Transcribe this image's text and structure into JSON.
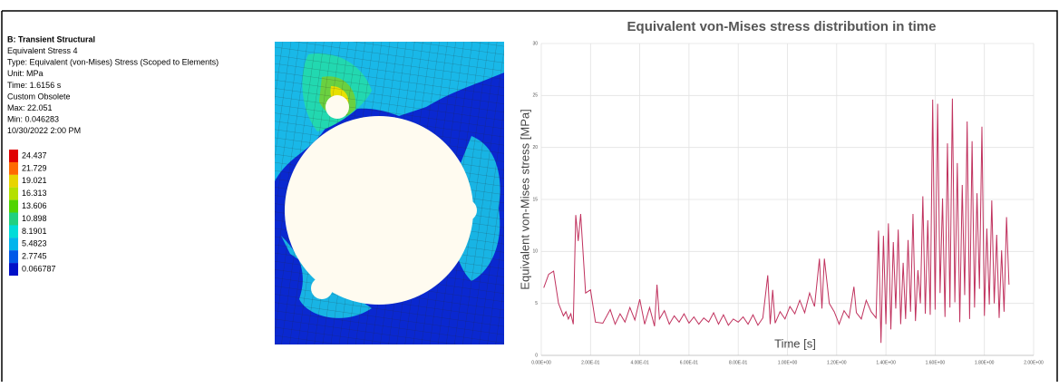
{
  "result_info": {
    "title": "B: Transient Structural",
    "lines": [
      "Equivalent Stress 4",
      "Type: Equivalent (von-Mises) Stress (Scoped to Elements)",
      "Unit: MPa",
      "Time: 1.6156 s",
      "Custom Obsolete",
      "Max: 22.051",
      "Min: 0.046283",
      "10/30/2022 2:00 PM"
    ],
    "legend": [
      {
        "label": "24.437",
        "color": "#e00000"
      },
      {
        "label": "21.729",
        "color": "#ff6a00"
      },
      {
        "label": "19.021",
        "color": "#e8d400"
      },
      {
        "label": "16.313",
        "color": "#b4e000"
      },
      {
        "label": "13.606",
        "color": "#50d400"
      },
      {
        "label": "10.898",
        "color": "#20d080"
      },
      {
        "label": "8.1901",
        "color": "#00dcd8"
      },
      {
        "label": "5.4823",
        "color": "#00b4ec"
      },
      {
        "label": "2.7745",
        "color": "#0058e8"
      },
      {
        "label": "0.066787",
        "color": "#0010c8"
      }
    ]
  },
  "chart_data": {
    "type": "line",
    "title": "Equivalent von-Mises stress distribution in time",
    "x_label": "Time [s]",
    "y_label": "Equivalent von-Mises stress [MPa]",
    "color": "#c0325e",
    "grid": true,
    "xlim": [
      0,
      2
    ],
    "ylim": [
      0,
      30
    ],
    "xticks": [
      {
        "value": 0,
        "label": "0.00E+00"
      },
      {
        "value": 0.2,
        "label": "2.00E-01"
      },
      {
        "value": 0.4,
        "label": "4.00E-01"
      },
      {
        "value": 0.6,
        "label": "6.00E-01"
      },
      {
        "value": 0.8,
        "label": "8.00E-01"
      },
      {
        "value": 1,
        "label": "1.00E+00"
      },
      {
        "value": 1.2,
        "label": "1.20E+00"
      },
      {
        "value": 1.4,
        "label": "1.40E+00"
      },
      {
        "value": 1.6,
        "label": "1.60E+00"
      },
      {
        "value": 1.8,
        "label": "1.80E+00"
      },
      {
        "value": 2,
        "label": "2.00E+00"
      }
    ],
    "yticks": [
      0,
      5,
      10,
      15,
      20,
      25,
      30
    ],
    "x": [
      0.01,
      0.03,
      0.05,
      0.07,
      0.09,
      0.1,
      0.11,
      0.12,
      0.13,
      0.14,
      0.15,
      0.16,
      0.18,
      0.2,
      0.22,
      0.25,
      0.28,
      0.3,
      0.32,
      0.34,
      0.36,
      0.38,
      0.4,
      0.42,
      0.44,
      0.46,
      0.47,
      0.48,
      0.5,
      0.52,
      0.54,
      0.56,
      0.58,
      0.6,
      0.62,
      0.64,
      0.66,
      0.68,
      0.7,
      0.72,
      0.74,
      0.76,
      0.78,
      0.8,
      0.82,
      0.84,
      0.86,
      0.88,
      0.9,
      0.92,
      0.93,
      0.94,
      0.95,
      0.97,
      0.99,
      1.01,
      1.03,
      1.05,
      1.07,
      1.09,
      1.11,
      1.13,
      1.14,
      1.15,
      1.17,
      1.19,
      1.21,
      1.23,
      1.25,
      1.27,
      1.28,
      1.3,
      1.32,
      1.34,
      1.36,
      1.37,
      1.38,
      1.39,
      1.4,
      1.41,
      1.42,
      1.43,
      1.44,
      1.45,
      1.46,
      1.47,
      1.48,
      1.49,
      1.5,
      1.51,
      1.52,
      1.53,
      1.54,
      1.55,
      1.56,
      1.57,
      1.58,
      1.59,
      1.6,
      1.61,
      1.62,
      1.63,
      1.64,
      1.65,
      1.66,
      1.67,
      1.68,
      1.69,
      1.7,
      1.71,
      1.72,
      1.73,
      1.74,
      1.75,
      1.76,
      1.77,
      1.78,
      1.79,
      1.8,
      1.81,
      1.82,
      1.83,
      1.84,
      1.85,
      1.86,
      1.87,
      1.88,
      1.89,
      1.9
    ],
    "values": [
      6.5,
      7.8,
      8.1,
      5,
      3.8,
      4.2,
      3.5,
      4,
      3,
      13.5,
      11,
      13.6,
      6,
      6.3,
      3.2,
      3.1,
      4.4,
      3,
      4,
      3.2,
      4.6,
      3.4,
      5.4,
      3,
      4.6,
      2.8,
      6.8,
      3.5,
      4.3,
      3,
      3.8,
      3.2,
      4,
      3.1,
      3.7,
      3,
      3.6,
      3.2,
      4.1,
      3,
      3.9,
      2.9,
      3.5,
      3.2,
      3.7,
      3,
      3.9,
      2.9,
      3.6,
      7.7,
      3,
      6.3,
      3.1,
      4.2,
      3.5,
      4.7,
      4,
      5.3,
      4.1,
      6,
      4.7,
      9.3,
      4.5,
      9.3,
      5,
      4.2,
      3,
      4.3,
      3.6,
      6.6,
      4.1,
      3.5,
      5.3,
      4.2,
      3.6,
      12,
      1.2,
      11.5,
      3,
      12.7,
      2.5,
      10.9,
      4.5,
      12.1,
      3,
      8.9,
      3.5,
      11.1,
      4.2,
      13.6,
      3.3,
      8.2,
      5,
      15.3,
      4,
      13,
      3.9,
      24.6,
      4.4,
      24.2,
      6,
      15.1,
      3.7,
      20.4,
      4.6,
      24.7,
      5.1,
      18.5,
      3.2,
      16.4,
      5.8,
      22.5,
      3.5,
      20.6,
      4.6,
      15.6,
      6.4,
      22,
      3.8,
      12.2,
      4.9,
      14.9,
      5,
      11.6,
      3.6,
      10.1,
      4.2,
      13.3,
      6.8
    ]
  }
}
